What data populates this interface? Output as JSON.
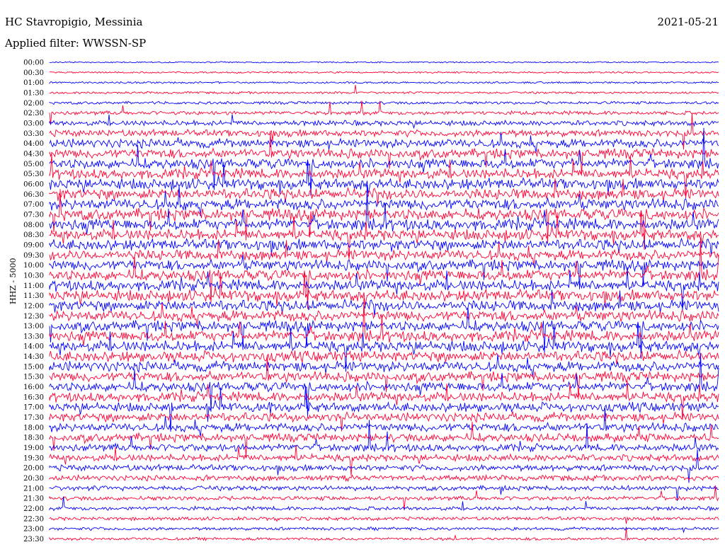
{
  "header": {
    "station": "HC Stavropigio, Messinia",
    "filter": "Applied filter: WWSSN-SP",
    "date": "2021-05-21"
  },
  "chart_data": {
    "type": "line",
    "title": "HC Stavropigio, Messinia",
    "subtitle": "Applied filter: WWSSN-SP",
    "date": "2021-05-21",
    "ylabel": "HHZ - 5000",
    "xlabel": "",
    "row_labels": [
      "00:00",
      "00:30",
      "01:00",
      "01:30",
      "02:00",
      "02:30",
      "03:00",
      "03:30",
      "04:00",
      "04:30",
      "05:00",
      "05:30",
      "06:00",
      "06:30",
      "07:00",
      "07:30",
      "08:00",
      "08:30",
      "09:00",
      "09:30",
      "10:00",
      "10:30",
      "11:00",
      "11:30",
      "12:00",
      "12:30",
      "13:00",
      "13:30",
      "14:00",
      "14:30",
      "15:00",
      "15:30",
      "16:00",
      "16:30",
      "17:00",
      "17:30",
      "18:00",
      "18:30",
      "19:00",
      "19:30",
      "20:00",
      "20:30",
      "21:00",
      "21:30",
      "22:00",
      "22:30",
      "23:00",
      "23:30"
    ],
    "series_colors": [
      "#0000ff",
      "#ff0033"
    ],
    "activity": [
      0.08,
      0.12,
      0.15,
      0.2,
      0.3,
      0.45,
      0.65,
      0.9,
      1.2,
      1.3,
      1.4,
      1.4,
      1.5,
      1.5,
      1.55,
      1.6,
      1.6,
      1.5,
      1.5,
      1.45,
      1.45,
      1.5,
      1.5,
      1.55,
      1.5,
      1.5,
      1.45,
      1.5,
      1.5,
      1.45,
      1.4,
      1.35,
      1.3,
      1.3,
      1.25,
      1.2,
      1.15,
      1.1,
      1.0,
      0.9,
      0.8,
      0.7,
      0.6,
      0.5,
      0.45,
      0.4,
      0.35,
      0.3
    ],
    "grid": false
  }
}
